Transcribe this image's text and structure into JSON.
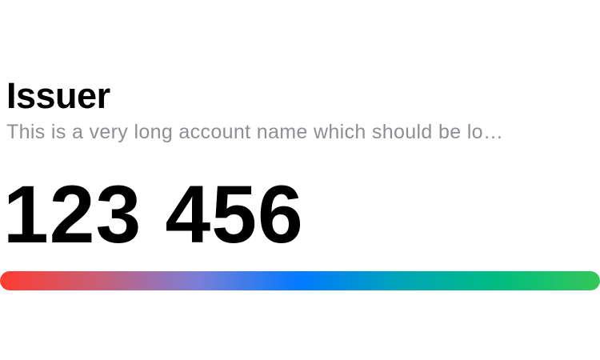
{
  "token": {
    "issuer": "Issuer",
    "account_name": "This is a very long account name which should be lo…",
    "code": "123 456"
  },
  "progress": {
    "fraction": 1.0,
    "gradient_colors": [
      "#ff3b30",
      "#c7607a",
      "#7a7ed8",
      "#007aff",
      "#00a6b8",
      "#00bd80",
      "#34c759"
    ]
  },
  "colors": {
    "issuer_text": "#000000",
    "account_text": "#8e8e93",
    "code_text": "#000000"
  }
}
